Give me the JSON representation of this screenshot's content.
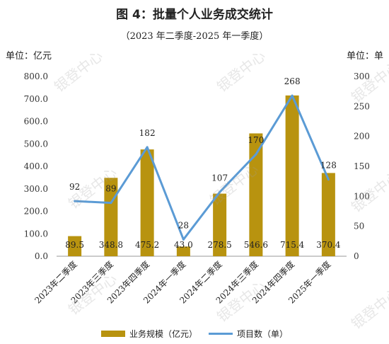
{
  "title": "图 4：批量个人业务成交统计",
  "subtitle": "（2023 年二季度-2025 年一季度）",
  "units": {
    "left": "单位：亿元",
    "right": "单位：单"
  },
  "watermark": "银登中心",
  "colors": {
    "bar": "#b8930f",
    "line": "#5b9bd5",
    "axis": "#999999"
  },
  "chart_data": {
    "type": "bar",
    "categories": [
      "2023年二季度",
      "2023年三季度",
      "2023年四季度",
      "2024年一季度",
      "2024年二季度",
      "2024年三季度",
      "2024年四季度",
      "2025年一季度"
    ],
    "series": [
      {
        "name": "业务规模（亿元）",
        "type": "bar",
        "axis": "left",
        "values": [
          89.5,
          348.8,
          475.2,
          43.0,
          278.5,
          546.6,
          715.4,
          370.4
        ],
        "labels": [
          "89.5",
          "348.8",
          "475.2",
          "43.0",
          "278.5",
          "546.6",
          "715.4",
          "370.4"
        ]
      },
      {
        "name": "项目数（单）",
        "type": "line",
        "axis": "right",
        "values": [
          92,
          89,
          182,
          28,
          107,
          170,
          268,
          128
        ]
      }
    ],
    "y_left": {
      "ylim": [
        0,
        800
      ],
      "ticks": [
        "0.0",
        "100.0",
        "200.0",
        "300.0",
        "400.0",
        "500.0",
        "600.0",
        "700.0",
        "800.0"
      ]
    },
    "y_right": {
      "ylim": [
        0,
        300
      ],
      "ticks": [
        "0",
        "50",
        "100",
        "150",
        "200",
        "250",
        "300"
      ]
    },
    "grid": false,
    "legend": "bottom"
  }
}
